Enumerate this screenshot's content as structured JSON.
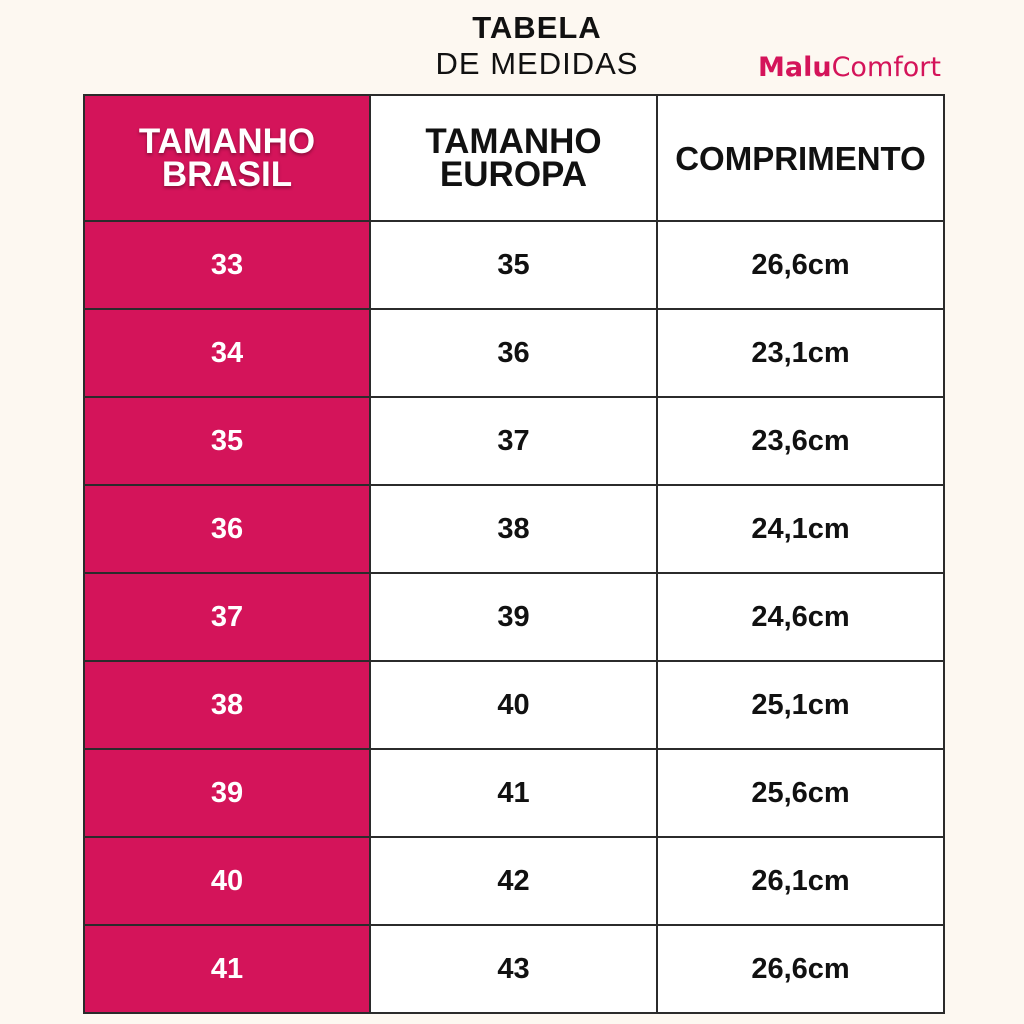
{
  "header": {
    "title": "TABELA",
    "subtitle": "DE MEDIDAS",
    "brand_strong": "Malu",
    "brand_light": "Comfort"
  },
  "table": {
    "columns": {
      "brasil": "TAMANHO\nBRASIL",
      "europa": "TAMANHO\nEUROPA",
      "comprimento": "COMPRIMENTO"
    },
    "rows": [
      {
        "brasil": "33",
        "europa": "35",
        "comprimento": "26,6cm"
      },
      {
        "brasil": "34",
        "europa": "36",
        "comprimento": "23,1cm"
      },
      {
        "brasil": "35",
        "europa": "37",
        "comprimento": "23,6cm"
      },
      {
        "brasil": "36",
        "europa": "38",
        "comprimento": "24,1cm"
      },
      {
        "brasil": "37",
        "europa": "39",
        "comprimento": "24,6cm"
      },
      {
        "brasil": "38",
        "europa": "40",
        "comprimento": "25,1cm"
      },
      {
        "brasil": "39",
        "europa": "41",
        "comprimento": "25,6cm"
      },
      {
        "brasil": "40",
        "europa": "42",
        "comprimento": "26,1cm"
      },
      {
        "brasil": "41",
        "europa": "43",
        "comprimento": "26,6cm"
      }
    ]
  },
  "colors": {
    "accent": "#d4145a",
    "background": "#fdf8f1",
    "cell": "#ffffff",
    "border": "#2b2b2b",
    "text": "#111111"
  }
}
